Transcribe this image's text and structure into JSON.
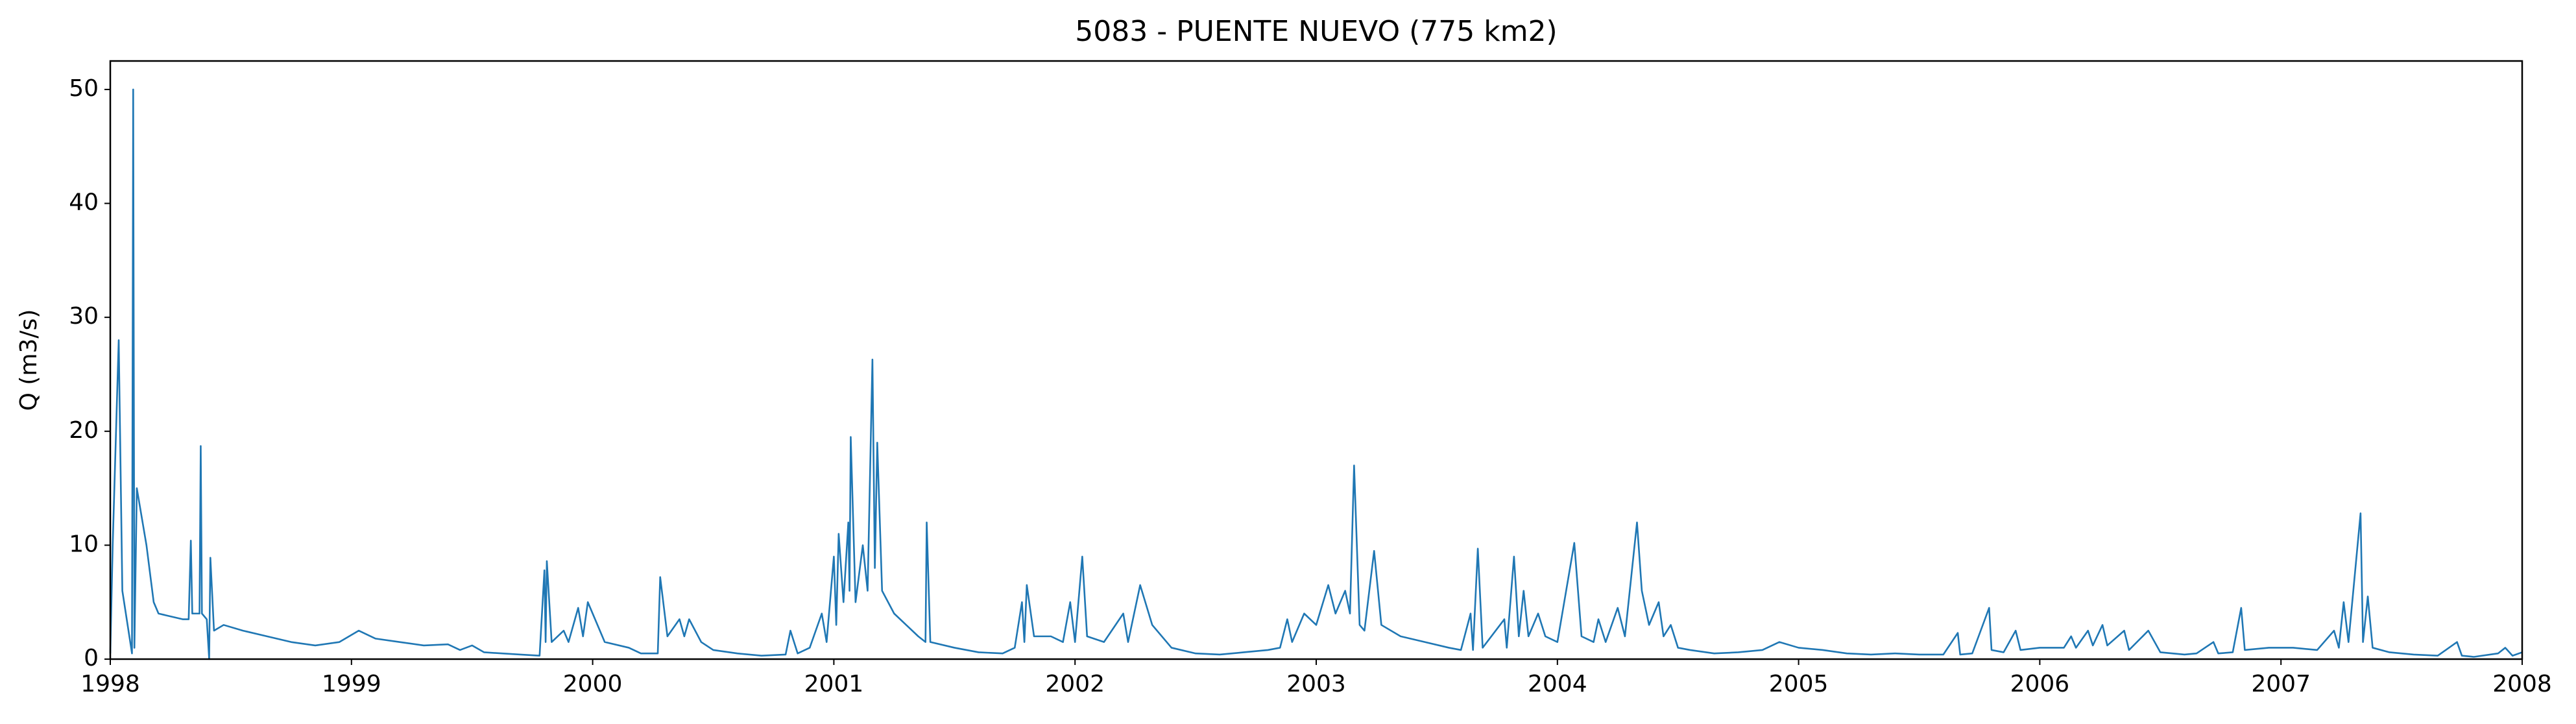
{
  "chart_data": {
    "type": "line",
    "title": "5083 - PUENTE NUEVO (775 km2)",
    "ylabel": "Q (m3/s)",
    "color": "#1f77b4",
    "xlim": [
      1998,
      2008
    ],
    "ylim": [
      0,
      52.5
    ],
    "xticks": [
      1998,
      1999,
      2000,
      2001,
      2002,
      2003,
      2004,
      2005,
      2006,
      2007,
      2008
    ],
    "yticks": [
      0,
      10,
      20,
      30,
      40,
      50
    ],
    "x": [
      1998.0,
      1998.01,
      1998.035,
      1998.05,
      1998.09,
      1998.095,
      1998.1,
      1998.11,
      1998.15,
      1998.18,
      1998.2,
      1998.3,
      1998.325,
      1998.334,
      1998.34,
      1998.37,
      1998.375,
      1998.38,
      1998.4,
      1998.41,
      1998.415,
      1998.43,
      1998.47,
      1998.55,
      1998.65,
      1998.75,
      1998.85,
      1998.95,
      1999.03,
      1999.1,
      1999.2,
      1999.3,
      1999.4,
      1999.45,
      1999.5,
      1999.55,
      1999.7,
      1999.78,
      1999.8,
      1999.805,
      1999.81,
      1999.83,
      1999.88,
      1999.9,
      1999.94,
      1999.96,
      1999.98,
      2000.05,
      2000.15,
      2000.2,
      2000.27,
      2000.28,
      2000.31,
      2000.36,
      2000.38,
      2000.4,
      2000.45,
      2000.5,
      2000.6,
      2000.7,
      2000.8,
      2000.82,
      2000.85,
      2000.9,
      2000.95,
      2000.97,
      2001.0,
      2001.01,
      2001.02,
      2001.04,
      2001.06,
      2001.065,
      2001.07,
      2001.09,
      2001.12,
      2001.14,
      2001.16,
      2001.17,
      2001.18,
      2001.2,
      2001.25,
      2001.3,
      2001.35,
      2001.38,
      2001.385,
      2001.4,
      2001.5,
      2001.6,
      2001.7,
      2001.75,
      2001.78,
      2001.79,
      2001.8,
      2001.83,
      2001.9,
      2001.95,
      2001.98,
      2002.0,
      2002.03,
      2002.05,
      2002.12,
      2002.2,
      2002.22,
      2002.27,
      2002.32,
      2002.4,
      2002.5,
      2002.6,
      2002.7,
      2002.8,
      2002.85,
      2002.88,
      2002.9,
      2002.95,
      2003.0,
      2003.05,
      2003.08,
      2003.12,
      2003.14,
      2003.157,
      2003.18,
      2003.2,
      2003.24,
      2003.27,
      2003.35,
      2003.45,
      2003.55,
      2003.6,
      2003.64,
      2003.65,
      2003.67,
      2003.69,
      2003.78,
      2003.79,
      2003.82,
      2003.84,
      2003.86,
      2003.88,
      2003.92,
      2003.95,
      2004.0,
      2004.07,
      2004.1,
      2004.15,
      2004.17,
      2004.2,
      2004.25,
      2004.28,
      2004.33,
      2004.35,
      2004.38,
      2004.42,
      2004.44,
      2004.47,
      2004.5,
      2004.55,
      2004.65,
      2004.75,
      2004.85,
      2004.92,
      2005.0,
      2005.1,
      2005.2,
      2005.3,
      2005.4,
      2005.5,
      2005.6,
      2005.66,
      2005.67,
      2005.72,
      2005.79,
      2005.8,
      2005.85,
      2005.9,
      2005.92,
      2006.0,
      2006.1,
      2006.13,
      2006.15,
      2006.2,
      2006.22,
      2006.26,
      2006.28,
      2006.35,
      2006.37,
      2006.45,
      2006.5,
      2006.6,
      2006.65,
      2006.72,
      2006.74,
      2006.8,
      2006.835,
      2006.85,
      2006.95,
      2007.05,
      2007.15,
      2007.22,
      2007.24,
      2007.26,
      2007.28,
      2007.33,
      2007.34,
      2007.36,
      2007.38,
      2007.45,
      2007.55,
      2007.65,
      2007.73,
      2007.75,
      2007.8,
      2007.9,
      2007.93,
      2007.96,
      2008.0
    ],
    "values": [
      0.5,
      10,
      28,
      6,
      0.5,
      50,
      1,
      15,
      10,
      5,
      4,
      3.5,
      3.5,
      10.4,
      4,
      4,
      18.7,
      4,
      3.5,
      0,
      8.9,
      2.5,
      3,
      2.5,
      2,
      1.5,
      1.2,
      1.5,
      2.5,
      1.8,
      1.5,
      1.2,
      1.3,
      0.8,
      1.2,
      0.6,
      0.4,
      0.3,
      7.8,
      1.5,
      8.6,
      1.5,
      2.5,
      1.5,
      4.5,
      2,
      5,
      1.5,
      1,
      0.5,
      0.5,
      7.2,
      2,
      3.5,
      2,
      3.5,
      1.5,
      0.8,
      0.5,
      0.3,
      0.4,
      2.5,
      0.5,
      1,
      4,
      1.5,
      9,
      3,
      11,
      5,
      12,
      6,
      19.5,
      5,
      10,
      6,
      26.3,
      8,
      19,
      6,
      4,
      3,
      2,
      1.5,
      12,
      1.5,
      1,
      0.6,
      0.5,
      1,
      5,
      1.5,
      6.5,
      2,
      2,
      1.5,
      5,
      1.5,
      9,
      2,
      1.5,
      4,
      1.5,
      6.5,
      3,
      1,
      0.5,
      0.4,
      0.6,
      0.8,
      1,
      3.5,
      1.5,
      4,
      3,
      6.5,
      4,
      6,
      4,
      17,
      3,
      2.5,
      9.5,
      3,
      2,
      1.5,
      1,
      0.8,
      4,
      0.8,
      9.7,
      1,
      3.5,
      1,
      9,
      2,
      6,
      2,
      4,
      2,
      1.5,
      10.2,
      2,
      1.5,
      3.5,
      1.5,
      4.5,
      2,
      12,
      6,
      3,
      5,
      2,
      3,
      1,
      0.8,
      0.5,
      0.6,
      0.8,
      1.5,
      1,
      0.8,
      0.5,
      0.4,
      0.5,
      0.4,
      0.4,
      2.3,
      0.4,
      0.5,
      4.5,
      0.8,
      0.6,
      2.5,
      0.8,
      1,
      1,
      2,
      1,
      2.5,
      1.2,
      3,
      1.2,
      2.5,
      0.8,
      2.5,
      0.6,
      0.4,
      0.5,
      1.5,
      0.5,
      0.6,
      4.5,
      0.8,
      1,
      1,
      0.8,
      2.5,
      1,
      5,
      1.5,
      12.8,
      1.5,
      5.5,
      1,
      0.6,
      0.4,
      0.3,
      1.5,
      0.3,
      0.2,
      0.5,
      1,
      0.3,
      0.6
    ]
  }
}
